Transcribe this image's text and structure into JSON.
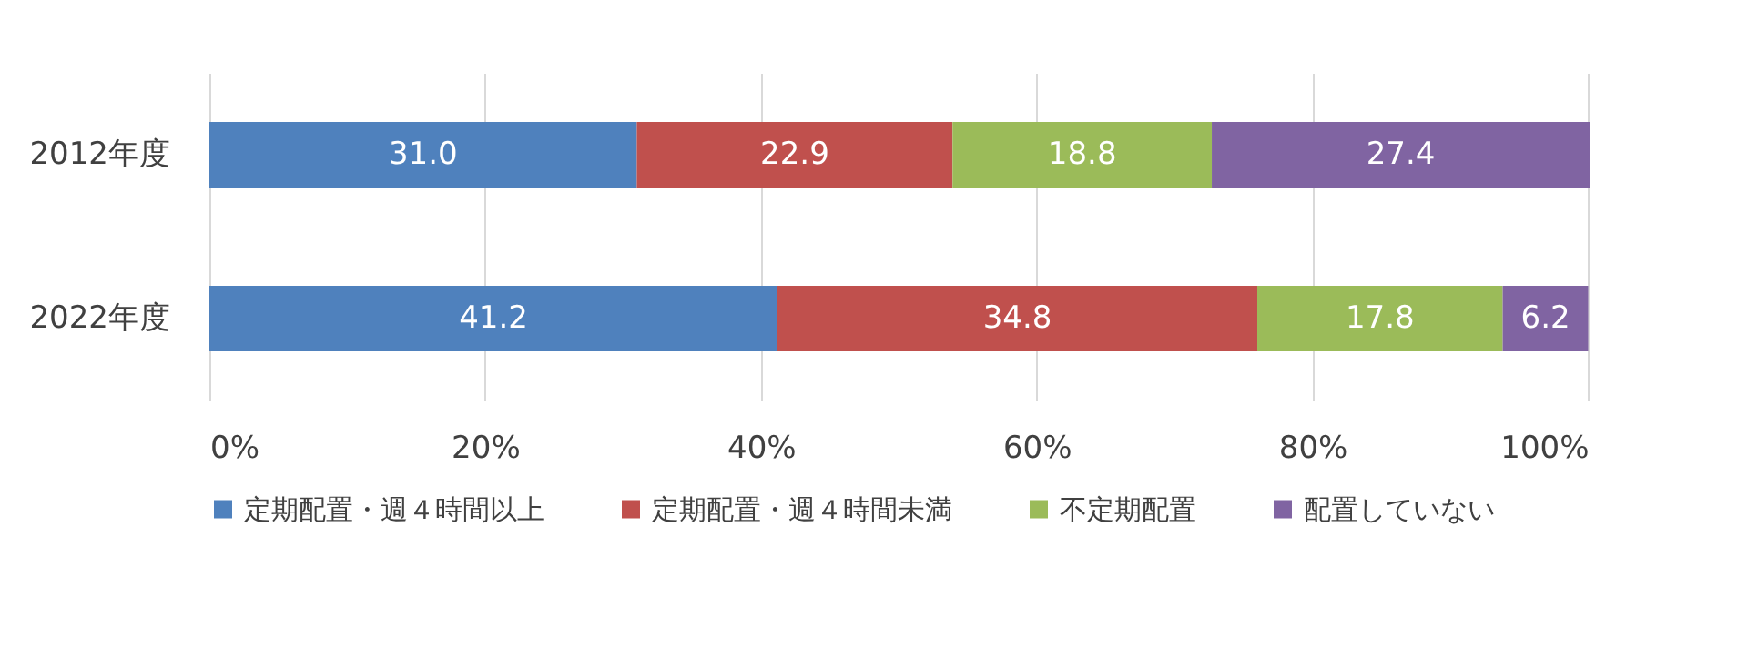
{
  "chart_data": {
    "type": "bar",
    "orientation": "horizontal",
    "stacked": true,
    "categories": [
      "2012年度",
      "2022年度"
    ],
    "series": [
      {
        "name": "定期配置・週４時間以上",
        "color": "#4f81bd",
        "values": [
          31.0,
          41.2
        ],
        "value_labels": [
          "31.0",
          "41.2"
        ]
      },
      {
        "name": "定期配置・週４時間未満",
        "color": "#c0504d",
        "values": [
          22.9,
          34.8
        ],
        "value_labels": [
          "22.9",
          "34.8"
        ]
      },
      {
        "name": "不定期配置",
        "color": "#9bbb59",
        "values": [
          18.8,
          17.8
        ],
        "value_labels": [
          "18.8",
          "17.8"
        ]
      },
      {
        "name": "配置していない",
        "color": "#8064a2",
        "values": [
          27.4,
          6.2
        ],
        "value_labels": [
          "27.4",
          "6.2"
        ]
      }
    ],
    "xlim": [
      0,
      100.1
    ],
    "xticks": [
      {
        "value": 0,
        "label": "0%"
      },
      {
        "value": 20,
        "label": "20%"
      },
      {
        "value": 40,
        "label": "40%"
      },
      {
        "value": 60,
        "label": "60%"
      },
      {
        "value": 80,
        "label": "80%"
      },
      {
        "value": 100,
        "label": "100%"
      }
    ],
    "grid": "x",
    "legend": "bottom"
  }
}
